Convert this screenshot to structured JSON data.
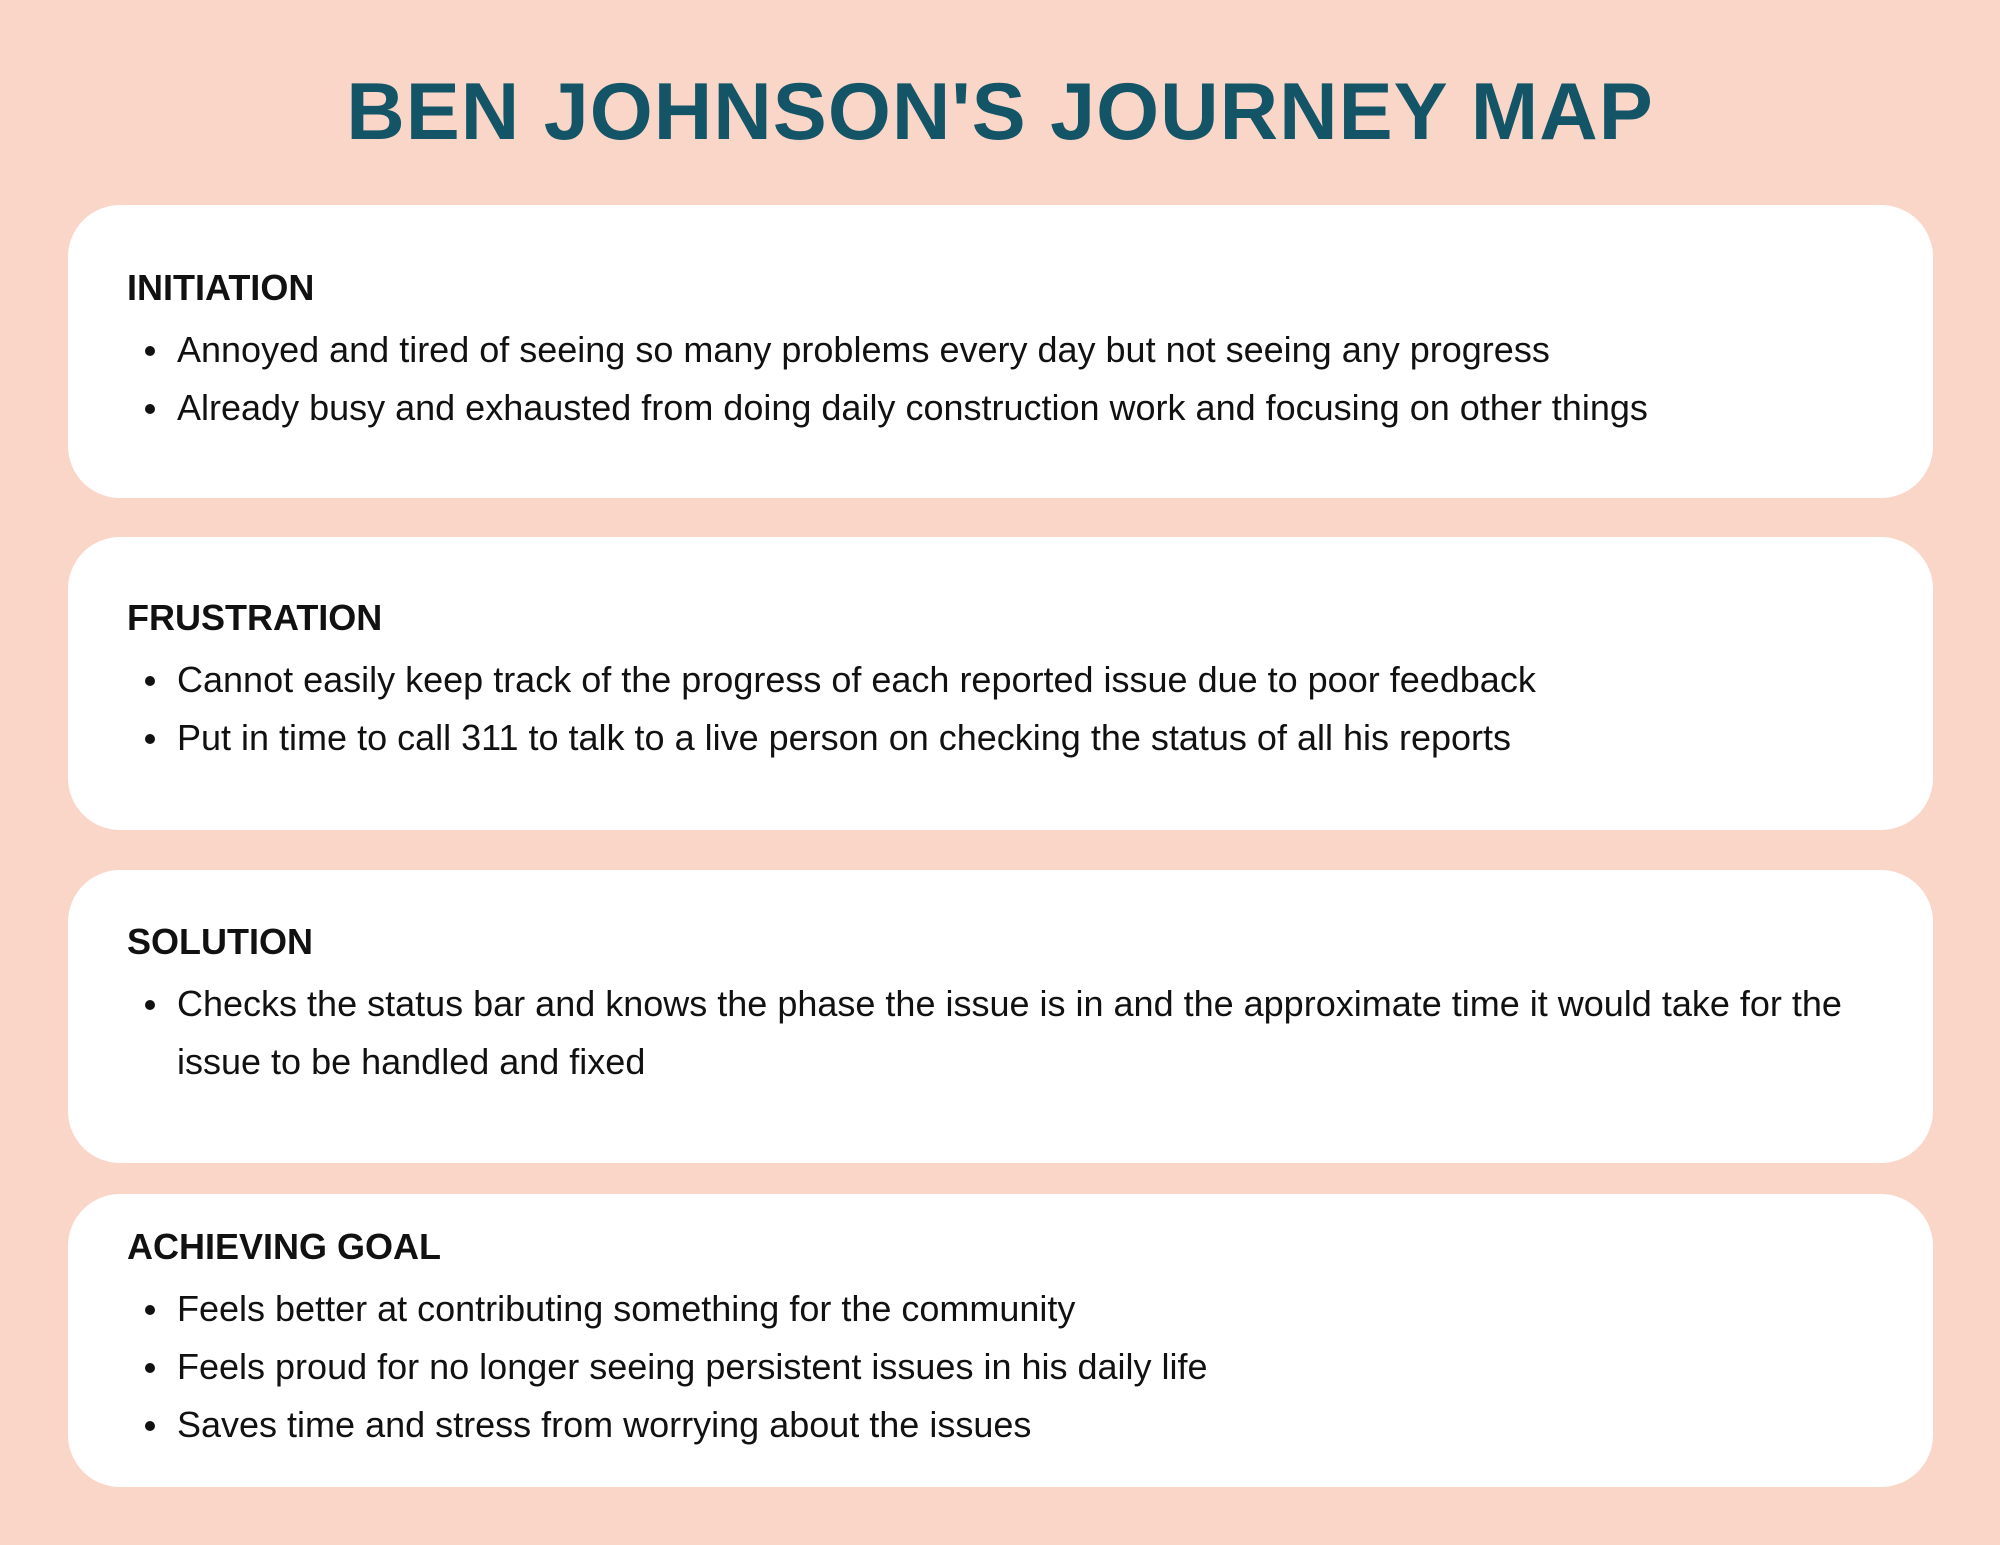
{
  "title": "BEN JOHNSON'S JOURNEY MAP",
  "colors": {
    "background": "#fad6c8",
    "title": "#135467",
    "card": "#ffffff",
    "text": "#111111"
  },
  "sections": [
    {
      "heading": "INITIATION",
      "bullets": [
        "Annoyed and tired of seeing so many problems every day but not seeing any progress",
        "Already busy and exhausted from doing daily construction work and focusing on other things"
      ]
    },
    {
      "heading": "FRUSTRATION",
      "bullets": [
        "Cannot easily keep track of the progress of each reported issue due to poor feedback",
        "Put in time to call 311 to talk to a live person on checking the status of all his reports"
      ]
    },
    {
      "heading": "SOLUTION",
      "bullets": [
        "Checks the status bar and knows the phase the issue is in and the approximate time it would take for the issue to be handled and fixed"
      ]
    },
    {
      "heading": "ACHIEVING GOAL",
      "bullets": [
        "Feels better at contributing something for the community",
        "Feels proud for no longer seeing persistent issues in his daily life",
        "Saves time and stress from worrying about the issues"
      ]
    }
  ]
}
